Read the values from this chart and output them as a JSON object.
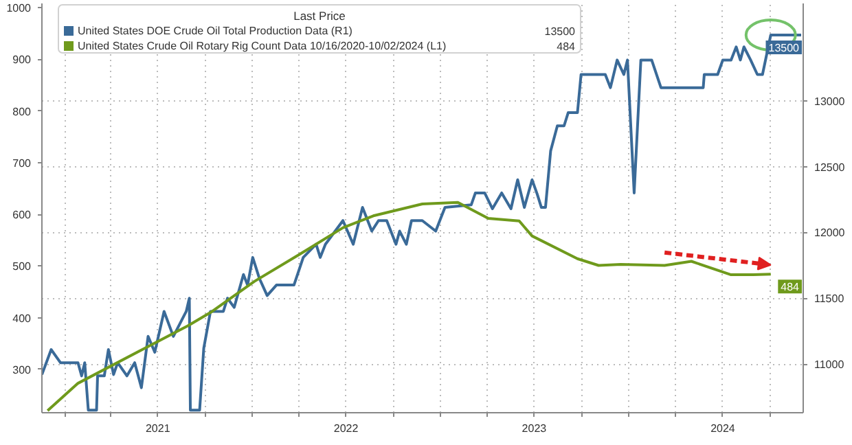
{
  "chart_data": {
    "type": "line",
    "legend_title": "Last Price",
    "legend": "top left",
    "grid": true,
    "xlim": [
      "2020-11-18",
      "2024-12-04"
    ],
    "xticks": [
      {
        "value": "2021-01-01",
        "label": null
      },
      {
        "value": "2021-04-01",
        "label": null
      },
      {
        "value": "2021-07-01",
        "label": "2021"
      },
      {
        "value": "2021-10-01",
        "label": null
      },
      {
        "value": "2022-01-01",
        "label": null
      },
      {
        "value": "2022-04-01",
        "label": null
      },
      {
        "value": "2022-07-01",
        "label": "2022"
      },
      {
        "value": "2022-10-01",
        "label": null
      },
      {
        "value": "2023-01-01",
        "label": null
      },
      {
        "value": "2023-04-01",
        "label": null
      },
      {
        "value": "2023-07-01",
        "label": "2023"
      },
      {
        "value": "2023-10-01",
        "label": null
      },
      {
        "value": "2024-01-01",
        "label": null
      },
      {
        "value": "2024-04-01",
        "label": null
      },
      {
        "value": "2024-07-01",
        "label": "2024"
      },
      {
        "value": "2024-10-01",
        "label": null
      }
    ],
    "ylim": [
      216,
      1008
    ],
    "yticks": [
      300,
      400,
      500,
      600,
      700,
      800,
      900,
      1000
    ],
    "y2lim": [
      10630,
      13740
    ],
    "y2ticks": [
      11000,
      11500,
      12000,
      12500,
      13000
    ],
    "series": [
      {
        "name": "United States DOE Crude Oil Total Production Data  (R1)",
        "color": "#3a6a98",
        "axis": "y2",
        "x": [
          "2020-11-18",
          "2020-12-06",
          "2020-12-24",
          "2021-01-27",
          "2021-02-03",
          "2021-02-09",
          "2021-02-16",
          "2021-03-04",
          "2021-03-06",
          "2021-03-19",
          "2021-03-27",
          "2021-04-06",
          "2021-04-14",
          "2021-05-02",
          "2021-05-17",
          "2021-05-30",
          "2021-06-12",
          "2021-06-25",
          "2021-07-13",
          "2021-07-31",
          "2021-08-25",
          "2021-08-31",
          "2021-09-02",
          "2021-09-20",
          "2021-09-28",
          "2021-10-11",
          "2021-11-05",
          "2021-11-13",
          "2021-11-26",
          "2021-12-14",
          "2021-12-22",
          "2022-01-01",
          "2022-01-14",
          "2022-01-29",
          "2022-02-16",
          "2022-03-22",
          "2022-04-09",
          "2022-05-04",
          "2022-05-12",
          "2022-05-22",
          "2022-06-25",
          "2022-07-15",
          "2022-08-02",
          "2022-08-20",
          "2022-09-02",
          "2022-09-18",
          "2022-10-06",
          "2022-10-13",
          "2022-10-26",
          "2022-11-05",
          "2022-11-26",
          "2022-12-22",
          "2023-01-09",
          "2023-03-01",
          "2023-03-09",
          "2023-03-27",
          "2023-04-11",
          "2023-04-29",
          "2023-05-17",
          "2023-05-30",
          "2023-06-12",
          "2023-06-27",
          "2023-07-07",
          "2023-07-15",
          "2023-07-23",
          "2023-08-02",
          "2023-08-15",
          "2023-08-28",
          "2023-09-05",
          "2023-09-23",
          "2023-09-30",
          "2023-11-16",
          "2023-11-26",
          "2023-12-09",
          "2023-12-22",
          "2023-12-29",
          "2024-01-11",
          "2024-01-24",
          "2024-02-14",
          "2024-03-03",
          "2024-05-24",
          "2024-05-26",
          "2024-06-21",
          "2024-07-01",
          "2024-07-17",
          "2024-07-27",
          "2024-08-04",
          "2024-08-11",
          "2024-08-24",
          "2024-09-06",
          "2024-09-16",
          "2024-10-02",
          "2024-11-30"
        ],
        "values": [
          10920,
          11110,
          11010,
          11010,
          10910,
          11010,
          10650,
          10650,
          10910,
          10910,
          11110,
          10920,
          11010,
          10910,
          11010,
          10820,
          11210,
          11090,
          11400,
          11210,
          11400,
          11500,
          10650,
          10650,
          11120,
          11400,
          11400,
          11500,
          11430,
          11680,
          11600,
          11810,
          11650,
          11520,
          11600,
          11600,
          11810,
          11910,
          11810,
          11910,
          12090,
          11910,
          12190,
          12010,
          12090,
          12090,
          11910,
          12010,
          11910,
          12090,
          12090,
          12010,
          12190,
          12210,
          12300,
          12300,
          12180,
          12300,
          12180,
          12400,
          12190,
          12400,
          12290,
          12190,
          12190,
          12620,
          12810,
          12810,
          12910,
          12910,
          13200,
          13200,
          13100,
          13310,
          13200,
          13310,
          12300,
          13310,
          13310,
          13100,
          13100,
          13200,
          13200,
          13310,
          13310,
          13410,
          13310,
          13410,
          13310,
          13200,
          13200,
          13500,
          13500
        ],
        "value_labels": [
          null,
          null,
          null,
          null,
          null,
          null,
          null,
          null,
          null,
          null,
          null,
          null,
          null,
          null,
          null,
          null,
          null,
          null,
          null,
          null,
          null,
          null,
          null,
          null,
          null,
          null,
          null,
          null,
          null,
          null,
          null,
          null,
          null,
          null,
          null,
          null,
          null,
          null,
          null,
          null,
          null,
          null,
          null,
          null,
          null,
          null,
          null,
          null,
          null,
          null,
          null,
          null,
          null,
          null,
          null,
          null,
          null,
          null,
          null,
          null,
          null,
          null,
          null,
          null,
          null,
          null,
          null,
          null,
          null,
          null,
          null,
          null,
          null,
          null,
          null,
          null,
          null,
          null,
          null,
          null,
          null,
          null,
          null,
          null,
          null,
          null,
          null,
          null,
          null,
          null,
          null,
          null,
          "13500"
        ]
      },
      {
        "name": "United States Crude Oil Rotary Rig Count Data 10/16/2020-10/02/2024  (L1)",
        "color": "#6f9a1c",
        "x": [
          "2020-11-29",
          "2021-01-27",
          "2021-06-04",
          "2021-08-28",
          "2021-10-11",
          "2022-01-04",
          "2022-04-01",
          "2022-06-25",
          "2022-08-23",
          "2022-11-26",
          "2023-02-03",
          "2023-04-03",
          "2023-06-02",
          "2023-06-27",
          "2023-09-23",
          "2023-11-03",
          "2023-12-16",
          "2024-03-10",
          "2024-05-01",
          "2024-07-17",
          "2024-08-29",
          "2024-10-02"
        ],
        "values": [
          220,
          273,
          340,
          384,
          410,
          470,
          522,
          574,
          597,
          620,
          623,
          592,
          587,
          558,
          514,
          501,
          503,
          501,
          509,
          483,
          483,
          484
        ],
        "value_labels": [
          null,
          null,
          null,
          null,
          null,
          null,
          null,
          null,
          null,
          null,
          null,
          null,
          null,
          null,
          null,
          null,
          null,
          null,
          null,
          null,
          null,
          "484"
        ]
      }
    ]
  }
}
